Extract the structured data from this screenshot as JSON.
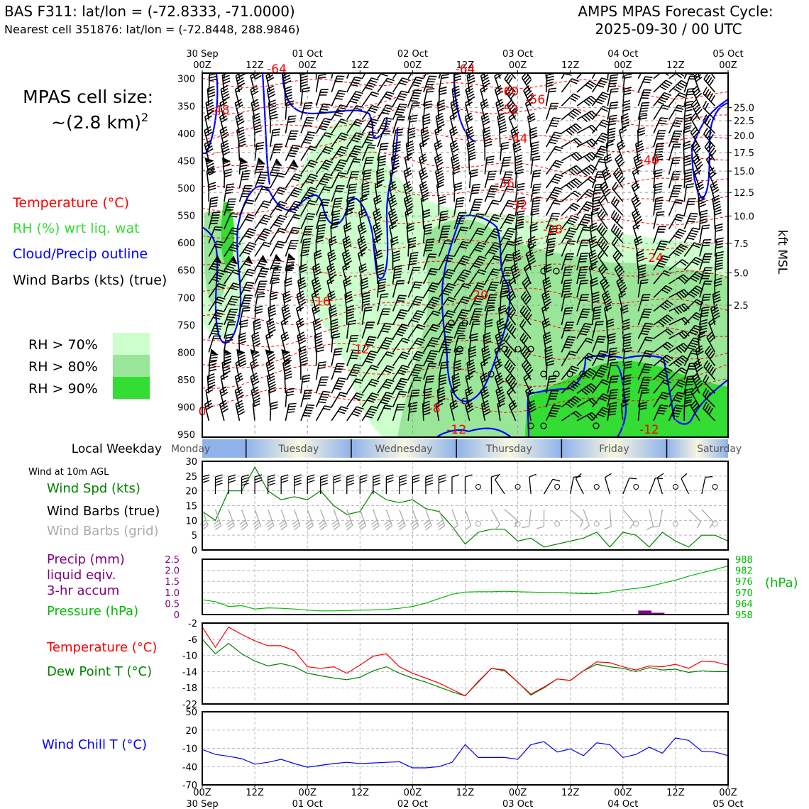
{
  "header": {
    "title_left": "BAS F311: lat/lon = (-72.8333, -71.0000)",
    "subtitle_left": "Nearest cell 351876: lat/lon = (-72.8448, 288.9846)",
    "title_right_1": "AMPS MPAS Forecast Cycle:",
    "title_right_2": "2025-09-30 / 00 UTC"
  },
  "time_axis": {
    "top_labels": [
      {
        "day": "30 Sep",
        "hour": "00Z"
      },
      {
        "day": "",
        "hour": "12Z"
      },
      {
        "day": "01 Oct",
        "hour": "00Z"
      },
      {
        "day": "",
        "hour": "12Z"
      },
      {
        "day": "02 Oct",
        "hour": "00Z"
      },
      {
        "day": "",
        "hour": "12Z"
      },
      {
        "day": "03 Oct",
        "hour": "00Z"
      },
      {
        "day": "",
        "hour": "12Z"
      },
      {
        "day": "04 Oct",
        "hour": "00Z"
      },
      {
        "day": "",
        "hour": "12Z"
      },
      {
        "day": "05 Oct",
        "hour": "00Z"
      }
    ]
  },
  "left_legend": {
    "cell_size_1": "MPAS cell size:",
    "cell_size_2": "~(2.8 km)",
    "cell_size_sup": "2",
    "temperature": "Temperature (°C)",
    "rh": "RH (%) wrt liq. wat",
    "cloud": "Cloud/Precip outline",
    "wind": "Wind Barbs (kts) (true)",
    "rh_levels": [
      "RH > 70%",
      "RH > 80%",
      "RH > 90%"
    ],
    "rh_colors": [
      "#ccffcc",
      "#99e699",
      "#33dd33"
    ]
  },
  "weekday_bar": {
    "label": "Local Weekday",
    "days": [
      "Monday",
      "Tuesday",
      "Wednesday",
      "Thursday",
      "Friday",
      "Saturday"
    ]
  },
  "panel_labels": {
    "wind10m": "Wind at 10m AGL",
    "wind_spd": "Wind Spd (kts)",
    "wind_barbs_true": "Wind Barbs (true)",
    "wind_barbs_grid": "Wind Barbs (grid)",
    "precip_1": "Precip (mm)",
    "precip_2": "liquid eqiv.",
    "precip_3": "3-hr accum",
    "pressure": "Pressure (hPa)",
    "pressure_unit": "(hPa)",
    "temperature": "Temperature (°C)",
    "dewpoint": "Dew Point T (°C)",
    "windchill": "Wind Chill T (°C)",
    "kft": "kft MSL"
  },
  "colors": {
    "temperature": "#ff0000",
    "rh": "#33dd33",
    "cloud": "#0000ff",
    "wind_grid": "#aaaaaa",
    "precip": "#800080",
    "pressure": "#00bb00",
    "dewpoint": "#008000",
    "windchill": "#0000ff"
  },
  "chart_data": [
    {
      "type": "heatmap",
      "name": "cross-section",
      "y_axis_ticks_hpa": [
        300,
        350,
        400,
        450,
        500,
        550,
        600,
        650,
        700,
        750,
        800,
        850,
        900,
        950
      ],
      "y_axis_right_kft": [
        "25.0",
        "22.5",
        "20.0",
        "17.5",
        "15.0",
        "12.5",
        "10.0",
        "7.5",
        "5.0",
        "2.5"
      ],
      "y_axis_right_kft_hpa": [
        353,
        377,
        404,
        435,
        469,
        508,
        551,
        601,
        655,
        714
      ],
      "ylim": [
        290,
        955
      ],
      "xlim_hours": [
        0,
        120
      ],
      "temperature_labels": [
        {
          "t": 4,
          "p": 357,
          "v": "-48"
        },
        {
          "t": 17,
          "p": 282,
          "v": "-64"
        },
        {
          "t": 60,
          "p": 282,
          "v": "-64"
        },
        {
          "t": 70,
          "p": 323,
          "v": "-60"
        },
        {
          "t": 76,
          "p": 338,
          "v": "-56"
        },
        {
          "t": 70,
          "p": 356,
          "v": "-52"
        },
        {
          "t": 72,
          "p": 409,
          "v": "-44"
        },
        {
          "t": 102,
          "p": 449,
          "v": "-40"
        },
        {
          "t": 69,
          "p": 491,
          "v": "-36"
        },
        {
          "t": 72,
          "p": 531,
          "v": "-32"
        },
        {
          "t": 80,
          "p": 575,
          "v": "-28"
        },
        {
          "t": 103,
          "p": 627,
          "v": "-24"
        },
        {
          "t": 63,
          "p": 695,
          "v": "-20"
        },
        {
          "t": 27,
          "p": 707,
          "v": "-16"
        },
        {
          "t": 36,
          "p": 794,
          "v": "-12"
        },
        {
          "t": 58,
          "p": 941,
          "v": "-12"
        },
        {
          "t": 102,
          "p": 941,
          "v": "-12"
        },
        {
          "t": 53,
          "p": 902,
          "v": "-8"
        },
        {
          "t": 0,
          "p": 908,
          "v": "0"
        }
      ]
    },
    {
      "type": "line",
      "name": "wind speed 10m",
      "x_hours": [
        0,
        3,
        6,
        9,
        12,
        15,
        18,
        21,
        24,
        27,
        30,
        33,
        36,
        39,
        42,
        45,
        48,
        51,
        54,
        57,
        60,
        63,
        66,
        69,
        72,
        75,
        78,
        81,
        84,
        87,
        90,
        93,
        96,
        99,
        102,
        105,
        108,
        111,
        114,
        117,
        120
      ],
      "series": [
        {
          "name": "Wind Spd (kts)",
          "values": [
            13,
            10,
            20,
            20,
            28,
            20,
            17,
            18,
            17,
            20,
            15,
            12,
            13,
            20,
            17,
            16,
            17,
            14,
            13,
            8,
            2,
            6,
            7,
            7,
            3,
            4,
            1,
            2,
            3,
            4,
            6,
            1,
            6,
            5,
            1,
            6,
            3,
            1,
            5,
            5,
            3
          ]
        }
      ],
      "yticks": [
        0,
        5,
        10,
        15,
        20,
        25,
        30
      ],
      "ylim": [
        0,
        30
      ]
    },
    {
      "type": "line",
      "name": "precip and pressure",
      "precip_yticks": [
        "0",
        "0.5",
        "1.0",
        "1.5",
        "2.0",
        "2.5"
      ],
      "precip_ylim": [
        0,
        2.5
      ],
      "precip_bars": [
        {
          "t": 101,
          "v": 0.18
        },
        {
          "t": 104,
          "v": 0.08
        }
      ],
      "pressure_yticks": [
        "958",
        "964",
        "970",
        "976",
        "982",
        "988"
      ],
      "pressure_ylim": [
        958,
        988
      ],
      "x_hours": [
        0,
        3,
        6,
        9,
        12,
        15,
        18,
        21,
        24,
        27,
        30,
        33,
        36,
        39,
        42,
        45,
        48,
        51,
        54,
        57,
        60,
        63,
        66,
        69,
        72,
        75,
        78,
        81,
        84,
        87,
        90,
        93,
        96,
        99,
        102,
        105,
        108,
        111,
        114,
        117,
        120
      ],
      "series": [
        {
          "name": "Pressure (hPa)",
          "values": [
            966.0,
            965.0,
            962.4,
            962.8,
            961.0,
            961.6,
            961.4,
            961.0,
            960.4,
            960.0,
            960.0,
            960.2,
            960.4,
            960.5,
            960.8,
            961.4,
            962.4,
            964.2,
            966.6,
            969.0,
            970.2,
            970.4,
            970.4,
            970.6,
            970.4,
            970.2,
            970.0,
            969.9,
            969.6,
            969.4,
            969.4,
            970.2,
            971.4,
            972.2,
            973.2,
            975.0,
            976.6,
            978.8,
            980.6,
            982.4,
            984.4
          ]
        }
      ]
    },
    {
      "type": "line",
      "name": "temperature and dew point",
      "yticks": [
        -2,
        -6,
        -10,
        -14,
        -18,
        -22
      ],
      "ylim": [
        -22,
        -2
      ],
      "x_hours": [
        0,
        3,
        6,
        9,
        12,
        15,
        18,
        21,
        24,
        27,
        30,
        33,
        36,
        39,
        42,
        45,
        48,
        51,
        54,
        57,
        60,
        63,
        66,
        69,
        72,
        75,
        78,
        81,
        84,
        87,
        90,
        93,
        96,
        99,
        102,
        105,
        108,
        111,
        114,
        117,
        120
      ],
      "series": [
        {
          "name": "Temperature (°C)",
          "values": [
            -3.0,
            -8.0,
            -3.0,
            -4.8,
            -6.4,
            -7.6,
            -7.6,
            -8.8,
            -12.8,
            -13.2,
            -12.8,
            -14.4,
            -12.4,
            -10.2,
            -9.6,
            -12.8,
            -14.4,
            -15.6,
            -16.8,
            -18.4,
            -20.0,
            -16.4,
            -13.2,
            -13.6,
            -16.6,
            -19.6,
            -17.8,
            -15.8,
            -16.2,
            -13.8,
            -11.6,
            -11.8,
            -12.8,
            -13.6,
            -12.6,
            -12.8,
            -12.2,
            -13.2,
            -11.4,
            -11.6,
            -12.4
          ]
        },
        {
          "name": "Dew Point T (°C)",
          "values": [
            -6.0,
            -9.6,
            -7.0,
            -9.6,
            -11.4,
            -12.6,
            -12.0,
            -12.8,
            -14.4,
            -15.0,
            -15.6,
            -16.0,
            -15.4,
            -13.8,
            -12.8,
            -14.4,
            -15.6,
            -16.6,
            -17.8,
            -19.0,
            -20.0,
            -16.6,
            -13.2,
            -13.8,
            -16.6,
            -19.8,
            -18.0,
            -15.8,
            -16.2,
            -13.8,
            -12.2,
            -12.8,
            -13.2,
            -14.0,
            -13.0,
            -13.6,
            -13.4,
            -14.2,
            -13.8,
            -14.0,
            -14.0
          ]
        }
      ]
    },
    {
      "type": "line",
      "name": "wind chill",
      "yticks": [
        50,
        20,
        -10,
        -40,
        -70
      ],
      "ylim": [
        -70,
        50
      ],
      "x_hours": [
        0,
        3,
        6,
        9,
        12,
        15,
        18,
        21,
        24,
        27,
        30,
        33,
        36,
        39,
        42,
        45,
        48,
        51,
        54,
        57,
        60,
        63,
        66,
        69,
        72,
        75,
        78,
        81,
        84,
        87,
        90,
        93,
        96,
        99,
        102,
        105,
        108,
        111,
        114,
        117,
        120
      ],
      "series": [
        {
          "name": "Wind Chill T (°C)",
          "values": [
            -12,
            -20,
            -23,
            -27,
            -36,
            -33,
            -28,
            -35,
            -41,
            -38,
            -35,
            -33,
            -35,
            -34,
            -33,
            -32,
            -42,
            -42,
            -40,
            -33,
            -4,
            -25,
            -25,
            -25,
            -28,
            -4,
            1,
            -16,
            -11,
            -22,
            -1,
            -4,
            -25,
            -20,
            -8,
            -18,
            7,
            3,
            -15,
            -16,
            -22
          ]
        }
      ]
    }
  ]
}
